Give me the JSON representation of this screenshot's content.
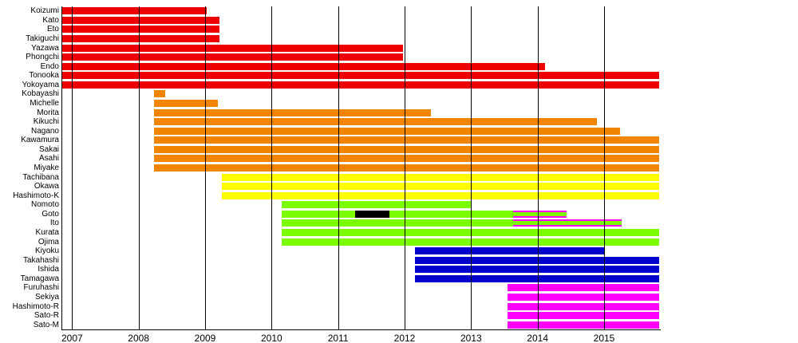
{
  "chart_data": {
    "type": "bar",
    "variant": "gantt-timeline",
    "title": "",
    "xlabel": "",
    "ylabel": "",
    "grid": "vertical-year-lines",
    "legend": "none",
    "x_axis": {
      "min": 2006.84,
      "max": 2015.84,
      "ticks": [
        2007,
        2008,
        2009,
        2010,
        2011,
        2012,
        2013,
        2014,
        2015
      ]
    },
    "colors": {
      "red": "#ee0000",
      "orange": "#f28500",
      "yellow": "#ffff00",
      "green": "#7cfc00",
      "blue": "#0000cc",
      "magenta": "#ff00ff",
      "black": "#000000",
      "axis": "#000000",
      "background": "#ffffff"
    },
    "rows": [
      {
        "label": "Koizumi",
        "color": "red",
        "segments": [
          {
            "start": 2006.84,
            "end": 2009.02
          }
        ]
      },
      {
        "label": "Kato",
        "color": "red",
        "segments": [
          {
            "start": 2006.84,
            "end": 2009.21
          }
        ]
      },
      {
        "label": "Eto",
        "color": "red",
        "segments": [
          {
            "start": 2006.84,
            "end": 2009.21
          }
        ]
      },
      {
        "label": "Takiguchi",
        "color": "red",
        "segments": [
          {
            "start": 2006.84,
            "end": 2009.21
          }
        ]
      },
      {
        "label": "Yazawa",
        "color": "red",
        "segments": [
          {
            "start": 2006.84,
            "end": 2011.97
          }
        ]
      },
      {
        "label": "Phongchi",
        "color": "red",
        "segments": [
          {
            "start": 2006.84,
            "end": 2011.97
          }
        ]
      },
      {
        "label": "Endo",
        "color": "red",
        "segments": [
          {
            "start": 2006.84,
            "end": 2014.11
          }
        ]
      },
      {
        "label": "Tonooka",
        "color": "red",
        "segments": [
          {
            "start": 2006.84,
            "end": 2015.83
          }
        ]
      },
      {
        "label": "Yokoyama",
        "color": "red",
        "segments": [
          {
            "start": 2006.84,
            "end": 2015.83
          }
        ]
      },
      {
        "label": "Kobayashi",
        "color": "orange",
        "segments": [
          {
            "start": 2008.23,
            "end": 2008.4
          }
        ]
      },
      {
        "label": "Michelle",
        "color": "orange",
        "segments": [
          {
            "start": 2008.23,
            "end": 2009.19
          }
        ]
      },
      {
        "label": "Morita",
        "color": "orange",
        "segments": [
          {
            "start": 2008.23,
            "end": 2012.4
          }
        ]
      },
      {
        "label": "Kikuchi",
        "color": "orange",
        "segments": [
          {
            "start": 2008.23,
            "end": 2014.89
          }
        ]
      },
      {
        "label": "Nagano",
        "color": "orange",
        "segments": [
          {
            "start": 2008.23,
            "end": 2015.24
          }
        ]
      },
      {
        "label": "Kawamura",
        "color": "orange",
        "segments": [
          {
            "start": 2008.23,
            "end": 2015.83
          }
        ]
      },
      {
        "label": "Sakai",
        "color": "orange",
        "segments": [
          {
            "start": 2008.23,
            "end": 2015.83
          }
        ]
      },
      {
        "label": "Asahi",
        "color": "orange",
        "segments": [
          {
            "start": 2008.23,
            "end": 2015.83
          }
        ]
      },
      {
        "label": "Miyake",
        "color": "orange",
        "segments": [
          {
            "start": 2008.23,
            "end": 2015.83
          }
        ]
      },
      {
        "label": "Tachibana",
        "color": "yellow",
        "segments": [
          {
            "start": 2009.25,
            "end": 2015.83
          }
        ]
      },
      {
        "label": "Okawa",
        "color": "yellow",
        "segments": [
          {
            "start": 2009.25,
            "end": 2015.83
          }
        ]
      },
      {
        "label": "Hashimoto-K",
        "color": "yellow",
        "segments": [
          {
            "start": 2009.25,
            "end": 2015.83
          }
        ]
      },
      {
        "label": "Nomoto",
        "color": "green",
        "segments": [
          {
            "start": 2010.15,
            "end": 2013.0
          }
        ]
      },
      {
        "label": "Goto",
        "color": "green",
        "segments": [
          {
            "start": 2010.15,
            "end": 2014.44
          }
        ],
        "overlays": [
          {
            "type": "fill",
            "color": "black",
            "start": 2011.26,
            "end": 2011.77
          },
          {
            "type": "frame",
            "color": "magenta",
            "start": 2013.63,
            "end": 2014.44
          }
        ]
      },
      {
        "label": "Ito",
        "color": "green",
        "segments": [
          {
            "start": 2010.15,
            "end": 2015.27
          }
        ],
        "overlays": [
          {
            "type": "frame",
            "color": "magenta",
            "start": 2013.63,
            "end": 2015.27
          }
        ]
      },
      {
        "label": "Kurata",
        "color": "green",
        "segments": [
          {
            "start": 2010.15,
            "end": 2015.83
          }
        ]
      },
      {
        "label": "Ojima",
        "color": "green",
        "segments": [
          {
            "start": 2010.15,
            "end": 2015.83
          }
        ]
      },
      {
        "label": "Kiyoku",
        "color": "blue",
        "segments": [
          {
            "start": 2012.16,
            "end": 2015.0
          }
        ]
      },
      {
        "label": "Takahashi",
        "color": "blue",
        "segments": [
          {
            "start": 2012.16,
            "end": 2015.83
          }
        ]
      },
      {
        "label": "Ishida",
        "color": "blue",
        "segments": [
          {
            "start": 2012.16,
            "end": 2015.83
          }
        ]
      },
      {
        "label": "Tamagawa",
        "color": "blue",
        "segments": [
          {
            "start": 2012.16,
            "end": 2015.83
          }
        ]
      },
      {
        "label": "Furuhashi",
        "color": "magenta",
        "segments": [
          {
            "start": 2013.55,
            "end": 2015.83
          }
        ]
      },
      {
        "label": "Sekiya",
        "color": "magenta",
        "segments": [
          {
            "start": 2013.55,
            "end": 2015.83
          }
        ]
      },
      {
        "label": "Hashimoto-R",
        "color": "magenta",
        "segments": [
          {
            "start": 2013.55,
            "end": 2015.83
          }
        ]
      },
      {
        "label": "Sato-R",
        "color": "magenta",
        "segments": [
          {
            "start": 2013.55,
            "end": 2015.83
          }
        ]
      },
      {
        "label": "Sato-M",
        "color": "magenta",
        "segments": [
          {
            "start": 2013.55,
            "end": 2015.83
          }
        ]
      }
    ]
  }
}
